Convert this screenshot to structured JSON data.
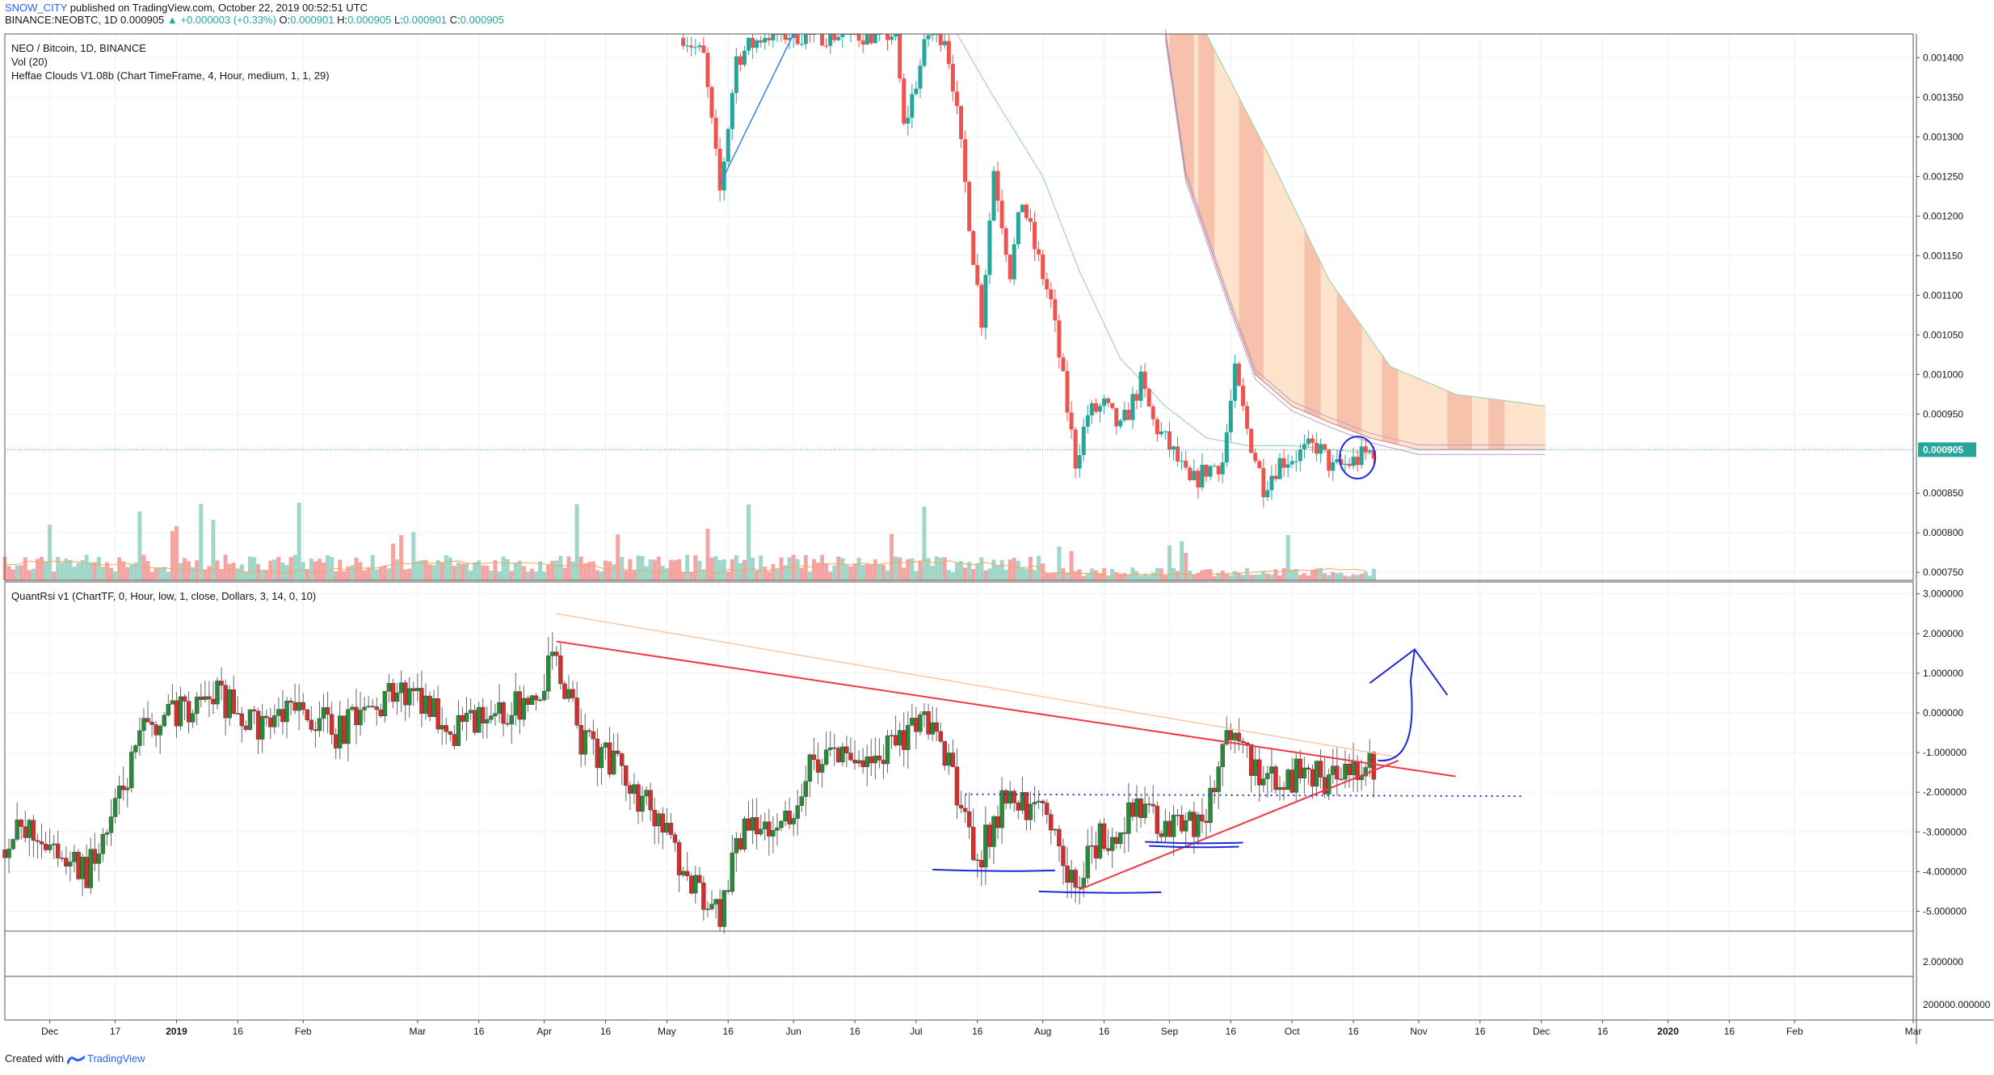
{
  "header": {
    "user": "SNOW_CITY",
    "published": "published on TradingView.com, October 22, 2019 00:52:51 UTC",
    "symbol_line_prefix": "BINANCE:NEOBTC, 1D 0.000905",
    "change_text": "▲ +0.000003 (+0.33%)",
    "ohlc_open_label": "O:",
    "ohlc_open": "0.000901",
    "ohlc_high_label": "H:",
    "ohlc_high": "0.000905",
    "ohlc_low_label": "L:",
    "ohlc_low": "0.000901",
    "ohlc_close_label": "C:",
    "ohlc_close": "0.000905"
  },
  "legend": {
    "symbol": "NEO / Bitcoin, 1D, BINANCE",
    "vol": "Vol (20)",
    "clouds": "Heffae Clouds V1.08b (Chart TimeFrame, 4, Hour, medium, 1, 1, 29)",
    "rsi": "QuantRsi v1 (ChartTF, 0, Hour, low, 1, close, Dollars, 3, 14, 0, 10)"
  },
  "footer": {
    "created_with": "Created with",
    "brand": "TradingView"
  },
  "colors": {
    "up": "#26a69a",
    "down": "#ef5350",
    "vol_up": "#9fd6c7",
    "vol_down": "#f4a5a3",
    "cloud": "#f6b5a0",
    "cloud_light": "#fde3cc",
    "ma_green": "#a5d6a7",
    "trend_red": "#f23645",
    "drawing_blue": "#1e2bd6",
    "price_line": "#26a69a",
    "grid": "#eef0f3"
  },
  "chart_data": [
    {
      "type": "candlestick",
      "pane": "price",
      "ylim": [
        0.00074,
        0.00143
      ],
      "y_ticks": [
        "0.001400",
        "0.001350",
        "0.001300",
        "0.001250",
        "0.001200",
        "0.001150",
        "0.001100",
        "0.001050",
        "0.001000",
        "0.000950",
        "0.000905",
        "0.000850",
        "0.000800",
        "0.000750"
      ],
      "last_price": "0.000905",
      "x_ticks": [
        "Dec",
        "17",
        "2019",
        "16",
        "Feb",
        "Mar",
        "16",
        "Apr",
        "16",
        "May",
        "16",
        "Jun",
        "16",
        "Jul",
        "16",
        "Aug",
        "16",
        "Sep",
        "16",
        "Oct",
        "16",
        "Nov",
        "16",
        "Dec",
        "16",
        "2020",
        "16",
        "Feb",
        "Mar"
      ],
      "close_path": [
        [
          "2019-05-05",
          0.00143
        ],
        [
          "2019-05-10",
          0.0014
        ],
        [
          "2019-05-14",
          0.00123
        ],
        [
          "2019-05-18",
          0.0014
        ],
        [
          "2019-05-25",
          0.00143
        ],
        [
          "2019-06-26",
          0.00143
        ],
        [
          "2019-06-28",
          0.00131
        ],
        [
          "2019-07-04",
          0.00143
        ],
        [
          "2019-07-08",
          0.00143
        ],
        [
          "2019-07-10",
          0.00137
        ],
        [
          "2019-07-13",
          0.00124
        ],
        [
          "2019-07-15",
          0.00115
        ],
        [
          "2019-07-17",
          0.00107
        ],
        [
          "2019-07-20",
          0.00126
        ],
        [
          "2019-07-24",
          0.00113
        ],
        [
          "2019-07-27",
          0.00122
        ],
        [
          "2019-07-30",
          0.00116
        ],
        [
          "2019-08-03",
          0.00109
        ],
        [
          "2019-08-06",
          0.00099
        ],
        [
          "2019-08-09",
          0.00089
        ],
        [
          "2019-08-12",
          0.00095
        ],
        [
          "2019-08-16",
          0.00096
        ],
        [
          "2019-08-20",
          0.00093
        ],
        [
          "2019-08-25",
          0.00099
        ],
        [
          "2019-08-28",
          0.00094
        ],
        [
          "2019-09-02",
          0.0009
        ],
        [
          "2019-09-06",
          0.00086
        ],
        [
          "2019-09-10",
          0.00088
        ],
        [
          "2019-09-14",
          0.00089
        ],
        [
          "2019-09-17",
          0.001
        ],
        [
          "2019-09-20",
          0.00093
        ],
        [
          "2019-09-24",
          0.00086
        ],
        [
          "2019-09-28",
          0.00089
        ],
        [
          "2019-10-03",
          0.0009
        ],
        [
          "2019-10-07",
          0.00091
        ],
        [
          "2019-10-11",
          0.00088
        ],
        [
          "2019-10-16",
          0.00089
        ],
        [
          "2019-10-21",
          0.000905
        ]
      ],
      "ma20_path": [
        [
          "2019-07-11",
          0.00143
        ],
        [
          "2019-07-20",
          0.00135
        ],
        [
          "2019-08-01",
          0.00125
        ],
        [
          "2019-08-10",
          0.00113
        ],
        [
          "2019-08-20",
          0.00102
        ],
        [
          "2019-08-31",
          0.00096
        ],
        [
          "2019-09-10",
          0.00092
        ],
        [
          "2019-09-20",
          0.00091
        ],
        [
          "2019-10-01",
          0.00091
        ],
        [
          "2019-10-21",
          0.0009
        ]
      ],
      "cloud_upper": [
        [
          "2019-08-31",
          0.00143
        ],
        [
          "2019-09-10",
          0.00143
        ],
        [
          "2019-09-25",
          0.00128
        ],
        [
          "2019-10-10",
          0.00112
        ],
        [
          "2019-10-25",
          0.00101
        ],
        [
          "2019-11-10",
          0.000975
        ],
        [
          "2019-11-25",
          0.000965
        ],
        [
          "2019-12-02",
          0.00096
        ]
      ],
      "cloud_lower": [
        [
          "2019-08-31",
          0.00143
        ],
        [
          "2019-09-05",
          0.00125
        ],
        [
          "2019-09-15",
          0.0011
        ],
        [
          "2019-09-22",
          0.001
        ],
        [
          "2019-10-01",
          0.00096
        ],
        [
          "2019-10-10",
          0.00094
        ],
        [
          "2019-10-20",
          0.00092
        ],
        [
          "2019-11-01",
          0.000905
        ],
        [
          "2019-12-02",
          0.000905
        ]
      ]
    },
    {
      "type": "bar",
      "pane": "volume",
      "series": [
        {
          "name": "Vol (20)",
          "values": "generated"
        }
      ]
    },
    {
      "type": "candlestick",
      "pane": "rsi",
      "ylim": [
        -5.5,
        3.3
      ],
      "y_ticks": [
        "3.000000",
        "2.000000",
        "1.000000",
        "0.000000",
        "-1.000000",
        "-2.000000",
        "-3.000000",
        "-4.000000",
        "-5.000000"
      ],
      "close_path": [
        [
          "2018-11-20",
          -3.2
        ],
        [
          "2018-11-28",
          -3.0
        ],
        [
          "2018-12-03",
          -3.5
        ],
        [
          "2018-12-10",
          -4.0
        ],
        [
          "2018-12-17",
          -2.5
        ],
        [
          "2018-12-24",
          -0.5
        ],
        [
          "2018-12-31",
          0.0
        ],
        [
          "2019-01-10",
          0.5
        ],
        [
          "2019-01-20",
          -0.3
        ],
        [
          "2019-02-01",
          0.0
        ],
        [
          "2019-02-10",
          -0.5
        ],
        [
          "2019-02-20",
          0.3
        ],
        [
          "2019-03-01",
          0.5
        ],
        [
          "2019-03-10",
          -0.4
        ],
        [
          "2019-03-20",
          -0.2
        ],
        [
          "2019-03-31",
          0.6
        ],
        [
          "2019-04-03",
          1.6
        ],
        [
          "2019-04-10",
          -0.7
        ],
        [
          "2019-04-20",
          -1.4
        ],
        [
          "2019-04-30",
          -3.0
        ],
        [
          "2019-05-08",
          -4.5
        ],
        [
          "2019-05-14",
          -5.2
        ],
        [
          "2019-05-20",
          -2.6
        ],
        [
          "2019-05-30",
          -2.8
        ],
        [
          "2019-06-05",
          -1.3
        ],
        [
          "2019-06-15",
          -1.0
        ],
        [
          "2019-06-22",
          -1.2
        ],
        [
          "2019-06-28",
          -0.5
        ],
        [
          "2019-07-04",
          -0.2
        ],
        [
          "2019-07-10",
          -1.5
        ],
        [
          "2019-07-16",
          -3.8
        ],
        [
          "2019-07-22",
          -2.2
        ],
        [
          "2019-08-01",
          -2.5
        ],
        [
          "2019-08-09",
          -4.3
        ],
        [
          "2019-08-15",
          -3.2
        ],
        [
          "2019-08-25",
          -2.4
        ],
        [
          "2019-09-02",
          -3.0
        ],
        [
          "2019-09-10",
          -2.6
        ],
        [
          "2019-09-16",
          -0.3
        ],
        [
          "2019-09-22",
          -1.5
        ],
        [
          "2019-09-28",
          -1.8
        ],
        [
          "2019-10-05",
          -1.4
        ],
        [
          "2019-10-12",
          -1.8
        ],
        [
          "2019-10-21",
          -1.3
        ]
      ],
      "drawings": {
        "resistance": [
          [
            "2019-04-04",
            1.8
          ],
          [
            "2019-11-10",
            -1.6
          ]
        ],
        "resistance_faint": [
          [
            "2019-04-04",
            2.5
          ],
          [
            "2019-10-26",
            -1.1
          ]
        ],
        "support": [
          [
            "2019-08-10",
            -4.45
          ],
          [
            "2019-10-27",
            -1.2
          ]
        ],
        "dotted_level": [
          [
            "2019-07-13",
            -2.05
          ],
          [
            "2019-11-27",
            -2.1
          ]
        ]
      }
    },
    {
      "type": "line",
      "pane": "sub1",
      "y_ticks": [
        "2.000000"
      ]
    },
    {
      "type": "line",
      "pane": "sub2",
      "y_ticks": [
        "200000.000000"
      ]
    }
  ]
}
